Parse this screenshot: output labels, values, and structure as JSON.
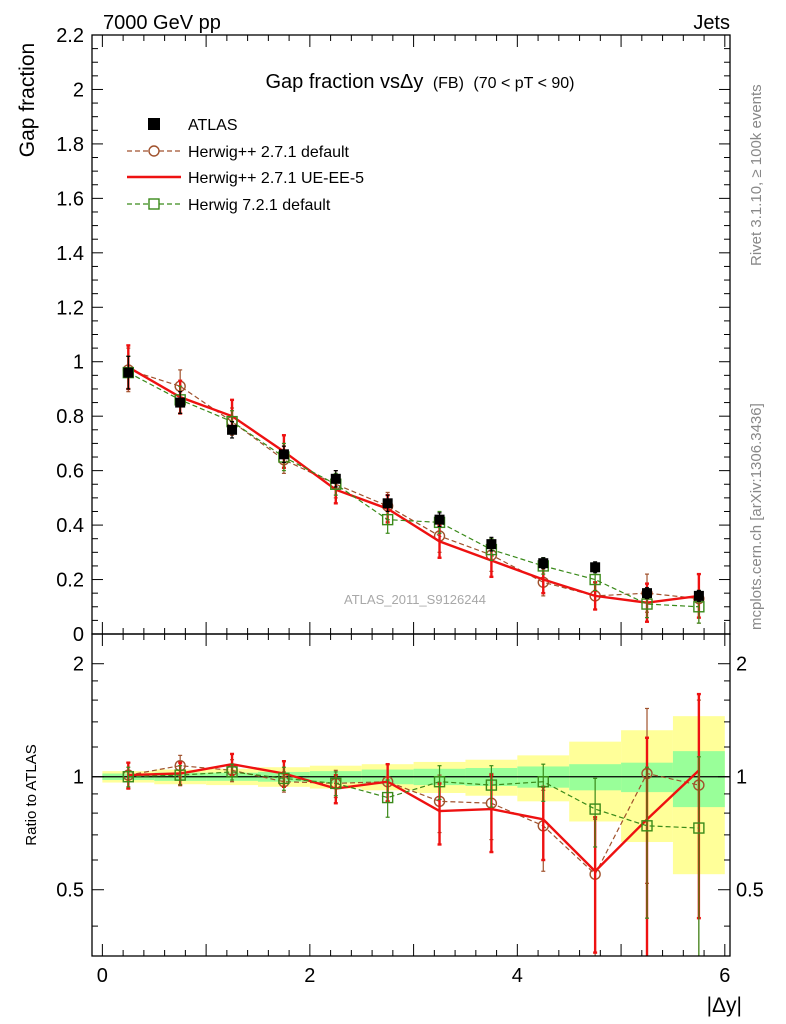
{
  "header": {
    "left": "7000 GeV pp",
    "right": "Jets",
    "side_rivet": "Rivet 3.1.10, ≥ 100k events",
    "side_mcplots": "mcplots.cern.ch [arXiv:1306.3436]",
    "watermark": "ATLAS_2011_S9126244"
  },
  "colors": {
    "atlas": "#000000",
    "herwig_default": "#a0522d",
    "herwig_ueee5": "#ee1111",
    "herwig72": "#3a8a1a",
    "band_inner": "#99ff99",
    "band_outer": "#ffff99"
  },
  "chart_data": [
    {
      "type": "scatter",
      "title_main": "Gap fraction vsΔy",
      "title_fb": "(FB)",
      "title_range": "(70 < pT <  90)",
      "ylabel": "Gap fraction",
      "xlim": [
        -0.1,
        6.05
      ],
      "ylim": [
        0,
        2.2
      ],
      "yticks": [
        "0",
        "0.2",
        "0.4",
        "0.6",
        "0.8",
        "1",
        "1.2",
        "1.4",
        "1.6",
        "1.8",
        "2",
        "2.2"
      ],
      "legend_position": "top-left",
      "x": [
        0.25,
        0.75,
        1.25,
        1.75,
        2.25,
        2.75,
        3.25,
        3.75,
        4.25,
        4.75,
        5.25,
        5.75
      ],
      "series": [
        {
          "name": "ATLAS",
          "style": "marker-filled-square",
          "values": [
            0.96,
            0.85,
            0.75,
            0.66,
            0.57,
            0.48,
            0.42,
            0.33,
            0.26,
            0.245,
            0.15,
            0.14
          ],
          "errors": [
            0.06,
            0.04,
            0.03,
            0.03,
            0.03,
            0.03,
            0.025,
            0.025,
            0.02,
            0.02,
            0.02,
            0.02
          ]
        },
        {
          "name": "Herwig++ 2.7.1 default",
          "style": "dashed-open-circle",
          "values": [
            0.97,
            0.91,
            0.78,
            0.64,
            0.55,
            0.47,
            0.36,
            0.29,
            0.19,
            0.14,
            0.15,
            0.13
          ],
          "errors": [
            0.08,
            0.06,
            0.05,
            0.05,
            0.05,
            0.05,
            0.06,
            0.06,
            0.05,
            0.05,
            0.07,
            0.09
          ]
        },
        {
          "name": "Herwig++ 2.7.1 UE-EE-5",
          "style": "solid-line",
          "values": [
            0.98,
            0.87,
            0.8,
            0.67,
            0.53,
            0.46,
            0.34,
            0.27,
            0.2,
            0.14,
            0.115,
            0.14
          ],
          "errors": [
            0.08,
            0.06,
            0.06,
            0.06,
            0.05,
            0.05,
            0.06,
            0.06,
            0.05,
            0.05,
            0.07,
            0.08
          ]
        },
        {
          "name": "Herwig 7.2.1 default",
          "style": "dashed-open-square",
          "values": [
            0.96,
            0.86,
            0.78,
            0.65,
            0.55,
            0.42,
            0.41,
            0.31,
            0.25,
            0.2,
            0.11,
            0.1
          ],
          "errors": [
            0.06,
            0.05,
            0.04,
            0.05,
            0.04,
            0.05,
            0.04,
            0.04,
            0.03,
            0.04,
            0.05,
            0.06
          ]
        }
      ]
    },
    {
      "type": "scatter",
      "ylabel": "Ratio to ATLAS",
      "xlabel": "|Δy|",
      "xlim": [
        -0.1,
        6.05
      ],
      "ylim": [
        0.333,
        2.4
      ],
      "log_scale_y": true,
      "yticks": [
        "0.5",
        "1",
        "2"
      ],
      "xticks": [
        "0",
        "2",
        "4",
        "6"
      ],
      "x": [
        0.25,
        0.75,
        1.25,
        1.75,
        2.25,
        2.75,
        3.25,
        3.75,
        4.25,
        4.75,
        5.25,
        5.75
      ],
      "bands": {
        "inner_half_width": [
          0.02,
          0.025,
          0.025,
          0.03,
          0.035,
          0.045,
          0.05,
          0.055,
          0.065,
          0.08,
          0.09,
          0.17
        ],
        "outer_half_width": [
          0.035,
          0.045,
          0.05,
          0.06,
          0.07,
          0.08,
          0.095,
          0.11,
          0.14,
          0.24,
          0.33,
          0.45
        ]
      },
      "series": [
        {
          "name": "Herwig++ 2.7.1 default",
          "style": "dashed-open-circle",
          "values": [
            1.01,
            1.07,
            1.04,
            0.97,
            0.96,
            0.97,
            0.86,
            0.85,
            0.74,
            0.55,
            1.02,
            0.95
          ],
          "errors": [
            0.08,
            0.07,
            0.07,
            0.06,
            0.08,
            0.11,
            0.15,
            0.17,
            0.18,
            0.22,
            0.5,
            0.65
          ]
        },
        {
          "name": "Herwig++ 2.7.1 UE-EE-5",
          "style": "solid-line",
          "values": [
            1.01,
            1.02,
            1.08,
            1.02,
            0.93,
            0.97,
            0.81,
            0.82,
            0.77,
            0.56,
            0.77,
            1.04
          ],
          "errors": [
            0.08,
            0.07,
            0.07,
            0.08,
            0.08,
            0.11,
            0.15,
            0.19,
            0.17,
            0.22,
            0.5,
            0.62
          ]
        },
        {
          "name": "Herwig 7.2.1 default",
          "style": "dashed-open-square",
          "values": [
            1.0,
            1.01,
            1.03,
            0.99,
            0.96,
            0.88,
            0.97,
            0.95,
            0.97,
            0.82,
            0.74,
            0.73
          ],
          "errors": [
            0.06,
            0.06,
            0.05,
            0.07,
            0.07,
            0.1,
            0.1,
            0.12,
            0.11,
            0.17,
            0.32,
            0.4
          ]
        }
      ]
    }
  ]
}
